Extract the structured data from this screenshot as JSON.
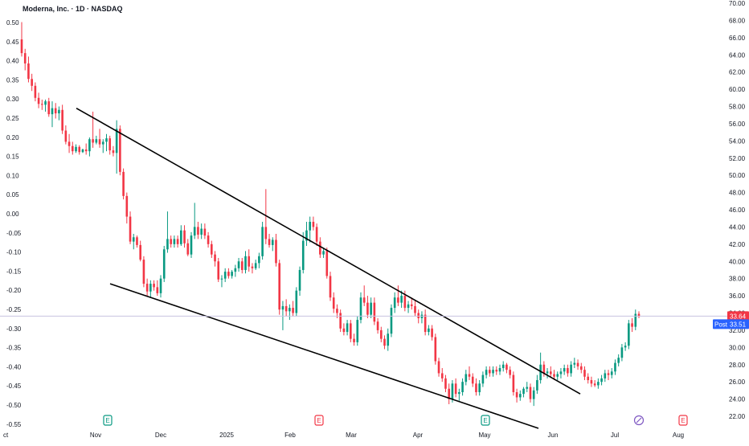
{
  "chart_data": {
    "type": "candlestick",
    "title": "Moderna, Inc. · 1D · NASDAQ",
    "colors": {
      "up": "#089981",
      "down": "#f23645",
      "trendline": "#000000",
      "price_line": "#c7c2e0",
      "post_badge": "#2962ff",
      "last_price_badge": "#f23645",
      "earnings_up": "#089981",
      "earnings_down": "#f23645",
      "dividend": "#7e57c2"
    },
    "left_axis": {
      "ticks": [
        "0.50",
        "0.45",
        "0.40",
        "0.35",
        "0.30",
        "0.25",
        "0.20",
        "0.15",
        "0.10",
        "0.05",
        "0.00",
        "-0.05",
        "-0.10",
        "-0.15",
        "-0.20",
        "-0.25",
        "-0.30",
        "-0.35",
        "-0.40",
        "-0.45",
        "-0.50",
        "-0.55"
      ]
    },
    "right_axis": {
      "range": [
        22,
        70
      ],
      "ticks": [
        "70.00",
        "68.00",
        "66.00",
        "64.00",
        "62.00",
        "60.00",
        "58.00",
        "56.00",
        "54.00",
        "52.00",
        "50.00",
        "48.00",
        "46.00",
        "44.00",
        "42.00",
        "40.00",
        "38.00",
        "36.00",
        "34.00",
        "32.00",
        "30.00",
        "28.00",
        "26.00",
        "24.00",
        "22.00"
      ]
    },
    "x_axis": {
      "labels": [
        "ct",
        "Nov",
        "Dec",
        "2025",
        "Feb",
        "Mar",
        "Apr",
        "May",
        "Jun",
        "Jul",
        "Aug"
      ]
    },
    "last_price": {
      "value": 33.64,
      "label": "33.64"
    },
    "post_price": {
      "tag": "Post",
      "value": 33.51,
      "label": "33.51"
    },
    "markers": [
      {
        "kind": "earnings",
        "color": "up",
        "label": "E",
        "date": "Nov"
      },
      {
        "kind": "earnings",
        "color": "down",
        "label": "E",
        "date": "Feb"
      },
      {
        "kind": "earnings",
        "color": "up",
        "label": "E",
        "date": "May"
      },
      {
        "kind": "dividend",
        "label": "",
        "date": "Jul"
      },
      {
        "kind": "earnings",
        "color": "down",
        "label": "E",
        "date": "Aug"
      }
    ],
    "trendlines": [
      {
        "name": "upper",
        "points": [
          [
            0,
            57.8
          ],
          [
            1,
            24.6
          ]
        ]
      },
      {
        "name": "lower",
        "points": [
          [
            0,
            37.4
          ],
          [
            1,
            20.6
          ]
        ]
      }
    ],
    "series": [
      {
        "o": 65.8,
        "h": 67.8,
        "l": 63.8,
        "c": 64.2
      },
      {
        "o": 64.2,
        "h": 64.7,
        "l": 62.2,
        "c": 63.0
      },
      {
        "o": 63.0,
        "h": 63.8,
        "l": 60.8,
        "c": 61.2
      },
      {
        "o": 61.2,
        "h": 61.8,
        "l": 59.8,
        "c": 60.4
      },
      {
        "o": 60.4,
        "h": 60.8,
        "l": 58.6,
        "c": 59.0
      },
      {
        "o": 59.0,
        "h": 59.6,
        "l": 57.8,
        "c": 58.3
      },
      {
        "o": 58.3,
        "h": 58.8,
        "l": 57.6,
        "c": 58.2
      },
      {
        "o": 58.2,
        "h": 58.8,
        "l": 57.4,
        "c": 58.6
      },
      {
        "o": 58.6,
        "h": 59.0,
        "l": 56.8,
        "c": 57.1
      },
      {
        "o": 57.1,
        "h": 58.6,
        "l": 55.6,
        "c": 57.8
      },
      {
        "o": 57.8,
        "h": 58.4,
        "l": 56.6,
        "c": 57.2
      },
      {
        "o": 57.2,
        "h": 58.0,
        "l": 56.4,
        "c": 57.6
      },
      {
        "o": 57.6,
        "h": 58.2,
        "l": 54.8,
        "c": 55.2
      },
      {
        "o": 55.2,
        "h": 55.8,
        "l": 53.6,
        "c": 53.9
      },
      {
        "o": 53.9,
        "h": 54.8,
        "l": 52.6,
        "c": 53.4
      },
      {
        "o": 53.4,
        "h": 53.9,
        "l": 52.4,
        "c": 52.8
      },
      {
        "o": 52.8,
        "h": 53.6,
        "l": 52.6,
        "c": 53.3
      },
      {
        "o": 53.3,
        "h": 53.5,
        "l": 52.4,
        "c": 52.7
      },
      {
        "o": 52.7,
        "h": 53.1,
        "l": 52.6,
        "c": 53.0
      },
      {
        "o": 53.0,
        "h": 53.7,
        "l": 52.4,
        "c": 52.8
      },
      {
        "o": 52.8,
        "h": 54.4,
        "l": 52.2,
        "c": 54.2
      },
      {
        "o": 54.2,
        "h": 57.4,
        "l": 53.2,
        "c": 53.8
      },
      {
        "o": 53.8,
        "h": 54.6,
        "l": 53.6,
        "c": 54.2
      },
      {
        "o": 54.2,
        "h": 55.4,
        "l": 53.2,
        "c": 53.6
      },
      {
        "o": 53.6,
        "h": 54.2,
        "l": 52.6,
        "c": 53.9
      },
      {
        "o": 53.9,
        "h": 54.8,
        "l": 52.8,
        "c": 54.3
      },
      {
        "o": 54.3,
        "h": 54.6,
        "l": 52.4,
        "c": 52.9
      },
      {
        "o": 52.9,
        "h": 53.4,
        "l": 52.2,
        "c": 52.6
      },
      {
        "o": 52.6,
        "h": 56.4,
        "l": 50.2,
        "c": 55.4
      },
      {
        "o": 55.4,
        "h": 55.8,
        "l": 50.0,
        "c": 50.4
      },
      {
        "o": 50.4,
        "h": 50.8,
        "l": 47.2,
        "c": 47.6
      },
      {
        "o": 47.6,
        "h": 48.0,
        "l": 44.4,
        "c": 45.2
      },
      {
        "o": 45.2,
        "h": 45.8,
        "l": 42.0,
        "c": 42.3
      },
      {
        "o": 42.3,
        "h": 43.2,
        "l": 41.4,
        "c": 42.8
      },
      {
        "o": 42.8,
        "h": 43.0,
        "l": 41.6,
        "c": 41.9
      },
      {
        "o": 41.9,
        "h": 42.4,
        "l": 40.0,
        "c": 40.2
      },
      {
        "o": 40.2,
        "h": 40.6,
        "l": 37.0,
        "c": 37.4
      },
      {
        "o": 37.4,
        "h": 38.0,
        "l": 36.0,
        "c": 36.5
      },
      {
        "o": 36.5,
        "h": 37.8,
        "l": 35.8,
        "c": 37.4
      },
      {
        "o": 37.4,
        "h": 37.8,
        "l": 36.6,
        "c": 37.0
      },
      {
        "o": 37.0,
        "h": 37.8,
        "l": 36.0,
        "c": 36.3
      },
      {
        "o": 36.3,
        "h": 38.4,
        "l": 35.8,
        "c": 38.0
      },
      {
        "o": 38.0,
        "h": 41.8,
        "l": 37.6,
        "c": 41.4
      },
      {
        "o": 41.4,
        "h": 45.8,
        "l": 41.0,
        "c": 42.6
      },
      {
        "o": 42.6,
        "h": 43.0,
        "l": 41.6,
        "c": 42.0
      },
      {
        "o": 42.0,
        "h": 43.0,
        "l": 41.6,
        "c": 42.6
      },
      {
        "o": 42.6,
        "h": 43.0,
        "l": 41.6,
        "c": 42.0
      },
      {
        "o": 42.0,
        "h": 44.2,
        "l": 41.8,
        "c": 43.6
      },
      {
        "o": 43.6,
        "h": 44.2,
        "l": 41.6,
        "c": 42.1
      },
      {
        "o": 42.1,
        "h": 42.6,
        "l": 40.6,
        "c": 40.8
      },
      {
        "o": 40.8,
        "h": 43.4,
        "l": 40.4,
        "c": 43.0
      },
      {
        "o": 43.0,
        "h": 46.8,
        "l": 42.6,
        "c": 44.0
      },
      {
        "o": 44.0,
        "h": 44.6,
        "l": 42.6,
        "c": 43.1
      },
      {
        "o": 43.1,
        "h": 44.4,
        "l": 42.6,
        "c": 43.8
      },
      {
        "o": 43.8,
        "h": 44.4,
        "l": 42.6,
        "c": 43.0
      },
      {
        "o": 43.0,
        "h": 43.4,
        "l": 41.6,
        "c": 42.0
      },
      {
        "o": 42.0,
        "h": 42.4,
        "l": 40.4,
        "c": 40.8
      },
      {
        "o": 40.8,
        "h": 41.2,
        "l": 39.4,
        "c": 40.0
      },
      {
        "o": 40.0,
        "h": 40.4,
        "l": 37.6,
        "c": 37.9
      },
      {
        "o": 37.9,
        "h": 38.4,
        "l": 37.0,
        "c": 38.0
      },
      {
        "o": 38.0,
        "h": 39.2,
        "l": 37.6,
        "c": 38.8
      },
      {
        "o": 38.8,
        "h": 39.2,
        "l": 38.0,
        "c": 38.3
      },
      {
        "o": 38.3,
        "h": 39.0,
        "l": 38.0,
        "c": 38.8
      },
      {
        "o": 38.8,
        "h": 39.6,
        "l": 38.2,
        "c": 39.2
      },
      {
        "o": 39.2,
        "h": 40.4,
        "l": 38.8,
        "c": 40.0
      },
      {
        "o": 40.0,
        "h": 40.4,
        "l": 38.6,
        "c": 39.0
      },
      {
        "o": 39.0,
        "h": 41.2,
        "l": 38.6,
        "c": 40.6
      },
      {
        "o": 40.6,
        "h": 41.4,
        "l": 38.8,
        "c": 39.4
      },
      {
        "o": 39.4,
        "h": 39.8,
        "l": 38.6,
        "c": 39.2
      },
      {
        "o": 39.2,
        "h": 40.2,
        "l": 39.0,
        "c": 39.8
      },
      {
        "o": 39.8,
        "h": 41.0,
        "l": 39.2,
        "c": 40.6
      },
      {
        "o": 40.6,
        "h": 44.6,
        "l": 40.2,
        "c": 44.0
      },
      {
        "o": 44.0,
        "h": 48.4,
        "l": 42.0,
        "c": 42.6
      },
      {
        "o": 42.6,
        "h": 43.2,
        "l": 41.6,
        "c": 41.9
      },
      {
        "o": 41.9,
        "h": 42.8,
        "l": 41.2,
        "c": 42.5
      },
      {
        "o": 42.5,
        "h": 43.2,
        "l": 39.4,
        "c": 39.8
      },
      {
        "o": 39.8,
        "h": 40.2,
        "l": 33.8,
        "c": 34.4
      },
      {
        "o": 34.4,
        "h": 35.4,
        "l": 32.0,
        "c": 34.8
      },
      {
        "o": 34.8,
        "h": 35.6,
        "l": 33.6,
        "c": 34.2
      },
      {
        "o": 34.2,
        "h": 35.0,
        "l": 33.2,
        "c": 34.6
      },
      {
        "o": 34.6,
        "h": 35.4,
        "l": 33.6,
        "c": 34.0
      },
      {
        "o": 34.0,
        "h": 37.0,
        "l": 33.6,
        "c": 36.6
      },
      {
        "o": 36.6,
        "h": 39.4,
        "l": 36.0,
        "c": 39.0
      },
      {
        "o": 39.0,
        "h": 43.4,
        "l": 38.6,
        "c": 42.4
      },
      {
        "o": 42.4,
        "h": 44.6,
        "l": 41.8,
        "c": 43.6
      },
      {
        "o": 43.6,
        "h": 45.2,
        "l": 42.2,
        "c": 44.6
      },
      {
        "o": 44.6,
        "h": 45.2,
        "l": 43.6,
        "c": 44.0
      },
      {
        "o": 44.0,
        "h": 44.4,
        "l": 41.8,
        "c": 42.3
      },
      {
        "o": 42.3,
        "h": 42.8,
        "l": 40.4,
        "c": 40.8
      },
      {
        "o": 40.8,
        "h": 41.6,
        "l": 40.4,
        "c": 41.2
      },
      {
        "o": 41.2,
        "h": 41.6,
        "l": 38.0,
        "c": 38.3
      },
      {
        "o": 38.3,
        "h": 38.8,
        "l": 35.4,
        "c": 35.8
      },
      {
        "o": 35.8,
        "h": 36.4,
        "l": 34.0,
        "c": 34.5
      },
      {
        "o": 34.5,
        "h": 35.0,
        "l": 33.4,
        "c": 34.0
      },
      {
        "o": 34.0,
        "h": 34.4,
        "l": 31.8,
        "c": 32.2
      },
      {
        "o": 32.2,
        "h": 32.8,
        "l": 31.4,
        "c": 31.8
      },
      {
        "o": 31.8,
        "h": 33.2,
        "l": 31.4,
        "c": 32.8
      },
      {
        "o": 32.8,
        "h": 33.2,
        "l": 30.6,
        "c": 31.0
      },
      {
        "o": 31.0,
        "h": 31.6,
        "l": 30.2,
        "c": 30.6
      },
      {
        "o": 30.6,
        "h": 33.6,
        "l": 30.2,
        "c": 33.2
      },
      {
        "o": 33.2,
        "h": 36.4,
        "l": 32.8,
        "c": 35.8
      },
      {
        "o": 35.8,
        "h": 37.2,
        "l": 34.8,
        "c": 35.2
      },
      {
        "o": 35.2,
        "h": 36.0,
        "l": 33.4,
        "c": 33.8
      },
      {
        "o": 33.8,
        "h": 35.8,
        "l": 33.4,
        "c": 35.2
      },
      {
        "o": 35.2,
        "h": 35.8,
        "l": 32.6,
        "c": 33.0
      },
      {
        "o": 33.0,
        "h": 33.4,
        "l": 31.6,
        "c": 32.0
      },
      {
        "o": 32.0,
        "h": 32.4,
        "l": 30.6,
        "c": 31.0
      },
      {
        "o": 31.0,
        "h": 31.4,
        "l": 29.8,
        "c": 30.2
      },
      {
        "o": 30.2,
        "h": 32.2,
        "l": 29.6,
        "c": 31.6
      },
      {
        "o": 31.6,
        "h": 35.0,
        "l": 31.2,
        "c": 34.6
      },
      {
        "o": 34.6,
        "h": 36.4,
        "l": 34.0,
        "c": 35.8
      },
      {
        "o": 35.8,
        "h": 37.2,
        "l": 34.8,
        "c": 35.2
      },
      {
        "o": 35.2,
        "h": 36.6,
        "l": 34.6,
        "c": 36.0
      },
      {
        "o": 36.0,
        "h": 36.6,
        "l": 34.2,
        "c": 34.6
      },
      {
        "o": 34.6,
        "h": 35.4,
        "l": 34.0,
        "c": 35.0
      },
      {
        "o": 35.0,
        "h": 35.8,
        "l": 34.4,
        "c": 34.8
      },
      {
        "o": 34.8,
        "h": 35.4,
        "l": 33.6,
        "c": 34.0
      },
      {
        "o": 34.0,
        "h": 34.4,
        "l": 32.8,
        "c": 33.4
      },
      {
        "o": 33.4,
        "h": 34.2,
        "l": 32.8,
        "c": 33.8
      },
      {
        "o": 33.8,
        "h": 34.4,
        "l": 31.4,
        "c": 31.8
      },
      {
        "o": 31.8,
        "h": 32.6,
        "l": 31.4,
        "c": 32.2
      },
      {
        "o": 32.2,
        "h": 32.6,
        "l": 30.8,
        "c": 31.2
      },
      {
        "o": 31.2,
        "h": 31.6,
        "l": 28.0,
        "c": 28.4
      },
      {
        "o": 28.4,
        "h": 28.8,
        "l": 26.6,
        "c": 27.0
      },
      {
        "o": 27.0,
        "h": 27.6,
        "l": 26.0,
        "c": 26.4
      },
      {
        "o": 26.4,
        "h": 26.8,
        "l": 24.8,
        "c": 25.2
      },
      {
        "o": 25.2,
        "h": 25.8,
        "l": 23.4,
        "c": 24.0
      },
      {
        "o": 24.0,
        "h": 26.2,
        "l": 23.6,
        "c": 25.8
      },
      {
        "o": 25.8,
        "h": 26.4,
        "l": 24.2,
        "c": 24.6
      },
      {
        "o": 24.6,
        "h": 25.2,
        "l": 23.8,
        "c": 24.8
      },
      {
        "o": 24.8,
        "h": 26.4,
        "l": 24.4,
        "c": 26.0
      },
      {
        "o": 26.0,
        "h": 27.4,
        "l": 25.6,
        "c": 26.9
      },
      {
        "o": 26.9,
        "h": 27.8,
        "l": 26.2,
        "c": 26.6
      },
      {
        "o": 26.6,
        "h": 27.0,
        "l": 25.4,
        "c": 25.8
      },
      {
        "o": 25.8,
        "h": 26.4,
        "l": 24.4,
        "c": 24.8
      },
      {
        "o": 24.8,
        "h": 26.2,
        "l": 24.4,
        "c": 25.8
      },
      {
        "o": 25.8,
        "h": 27.2,
        "l": 25.4,
        "c": 26.8
      },
      {
        "o": 26.8,
        "h": 27.8,
        "l": 26.4,
        "c": 27.4
      },
      {
        "o": 27.4,
        "h": 27.8,
        "l": 26.6,
        "c": 27.0
      },
      {
        "o": 27.0,
        "h": 27.8,
        "l": 26.6,
        "c": 27.4
      },
      {
        "o": 27.4,
        "h": 27.8,
        "l": 26.8,
        "c": 27.2
      },
      {
        "o": 27.2,
        "h": 28.0,
        "l": 26.8,
        "c": 27.6
      },
      {
        "o": 27.6,
        "h": 28.4,
        "l": 27.2,
        "c": 28.0
      },
      {
        "o": 28.0,
        "h": 28.2,
        "l": 27.0,
        "c": 27.4
      },
      {
        "o": 27.4,
        "h": 27.8,
        "l": 26.4,
        "c": 26.8
      },
      {
        "o": 26.8,
        "h": 27.2,
        "l": 24.4,
        "c": 24.8
      },
      {
        "o": 24.8,
        "h": 25.2,
        "l": 23.6,
        "c": 24.2
      },
      {
        "o": 24.2,
        "h": 25.0,
        "l": 23.8,
        "c": 24.6
      },
      {
        "o": 24.6,
        "h": 25.4,
        "l": 24.2,
        "c": 25.2
      },
      {
        "o": 25.2,
        "h": 26.0,
        "l": 24.8,
        "c": 25.4
      },
      {
        "o": 25.4,
        "h": 25.8,
        "l": 23.6,
        "c": 24.0
      },
      {
        "o": 24.0,
        "h": 25.4,
        "l": 23.2,
        "c": 25.0
      },
      {
        "o": 25.0,
        "h": 26.8,
        "l": 24.6,
        "c": 26.2
      },
      {
        "o": 26.2,
        "h": 29.4,
        "l": 25.8,
        "c": 28.0
      },
      {
        "o": 28.0,
        "h": 28.4,
        "l": 26.6,
        "c": 27.0
      },
      {
        "o": 27.0,
        "h": 27.6,
        "l": 26.4,
        "c": 27.2
      },
      {
        "o": 27.2,
        "h": 27.8,
        "l": 26.6,
        "c": 26.9
      },
      {
        "o": 26.9,
        "h": 27.4,
        "l": 26.2,
        "c": 26.6
      },
      {
        "o": 26.6,
        "h": 27.2,
        "l": 26.2,
        "c": 26.9
      },
      {
        "o": 26.9,
        "h": 27.6,
        "l": 26.4,
        "c": 27.2
      },
      {
        "o": 27.2,
        "h": 28.0,
        "l": 26.8,
        "c": 27.6
      },
      {
        "o": 27.6,
        "h": 28.0,
        "l": 26.6,
        "c": 27.0
      },
      {
        "o": 27.0,
        "h": 28.4,
        "l": 26.6,
        "c": 28.0
      },
      {
        "o": 28.0,
        "h": 28.8,
        "l": 27.6,
        "c": 28.2
      },
      {
        "o": 28.2,
        "h": 28.6,
        "l": 27.4,
        "c": 27.8
      },
      {
        "o": 27.8,
        "h": 28.2,
        "l": 27.0,
        "c": 27.4
      },
      {
        "o": 27.4,
        "h": 27.8,
        "l": 26.2,
        "c": 26.6
      },
      {
        "o": 26.6,
        "h": 27.0,
        "l": 25.8,
        "c": 26.2
      },
      {
        "o": 26.2,
        "h": 26.6,
        "l": 25.4,
        "c": 25.8
      },
      {
        "o": 25.8,
        "h": 26.2,
        "l": 25.4,
        "c": 25.6
      },
      {
        "o": 25.6,
        "h": 26.4,
        "l": 25.2,
        "c": 26.0
      },
      {
        "o": 26.0,
        "h": 26.8,
        "l": 25.6,
        "c": 26.4
      },
      {
        "o": 26.4,
        "h": 27.4,
        "l": 26.0,
        "c": 27.0
      },
      {
        "o": 27.0,
        "h": 27.4,
        "l": 26.2,
        "c": 26.8
      },
      {
        "o": 26.8,
        "h": 27.6,
        "l": 26.4,
        "c": 27.2
      },
      {
        "o": 27.2,
        "h": 28.6,
        "l": 26.8,
        "c": 28.2
      },
      {
        "o": 28.2,
        "h": 29.2,
        "l": 27.8,
        "c": 28.8
      },
      {
        "o": 28.8,
        "h": 30.4,
        "l": 28.4,
        "c": 30.0
      },
      {
        "o": 30.0,
        "h": 30.6,
        "l": 29.6,
        "c": 30.2
      },
      {
        "o": 30.2,
        "h": 33.2,
        "l": 29.8,
        "c": 32.8
      },
      {
        "o": 32.8,
        "h": 33.4,
        "l": 31.8,
        "c": 32.4
      },
      {
        "o": 32.4,
        "h": 34.4,
        "l": 32.0,
        "c": 33.9
      },
      {
        "o": 33.9,
        "h": 34.2,
        "l": 33.4,
        "c": 33.6
      }
    ]
  }
}
